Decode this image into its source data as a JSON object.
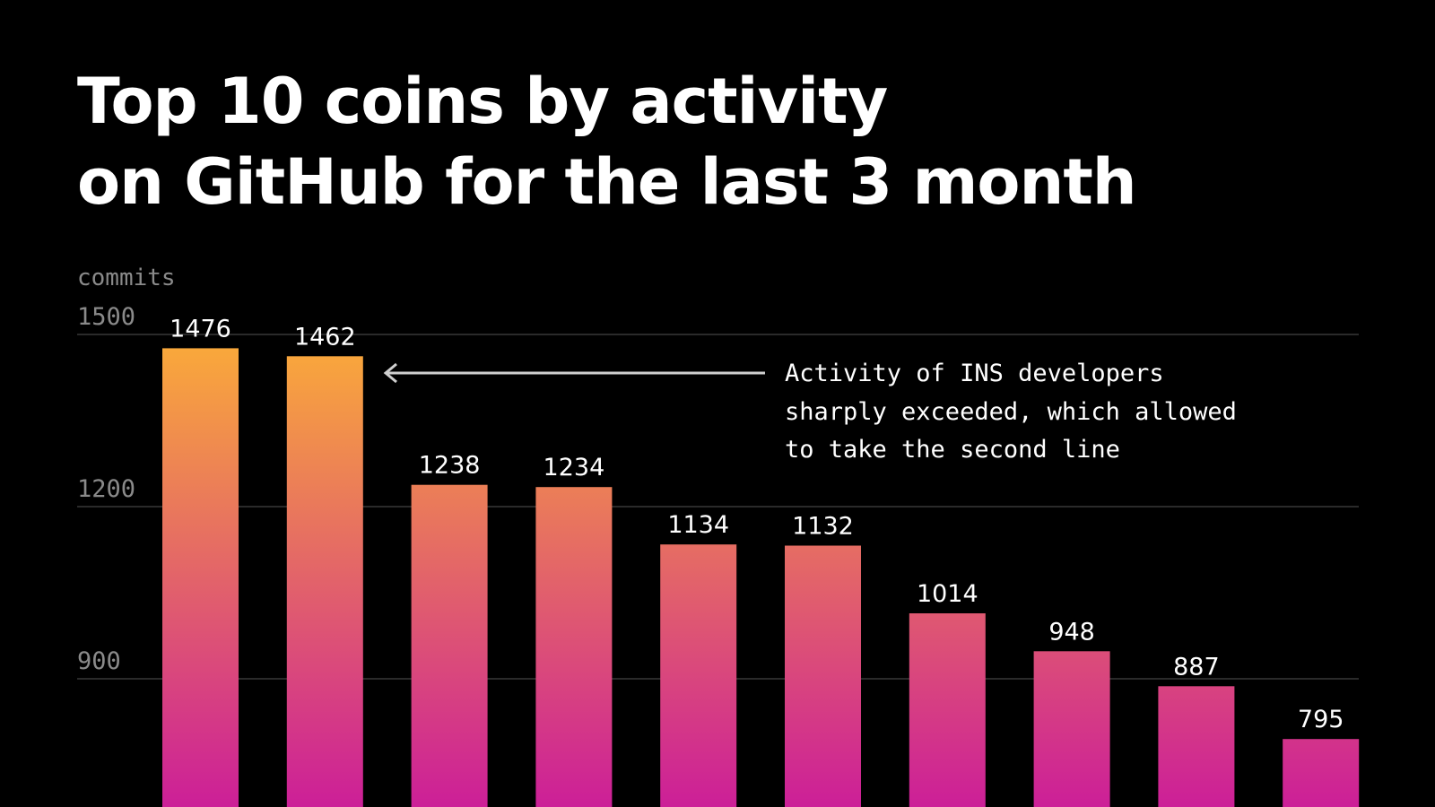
{
  "title_lines": [
    "Top 10 coins by activity",
    "on GitHub for the last 3 month"
  ],
  "chart_data": {
    "type": "bar",
    "ylabel": "commits",
    "yticks": [
      900,
      1200,
      1500
    ],
    "ylim": [
      700,
      1500
    ],
    "grid": true,
    "values": [
      1476,
      1462,
      1238,
      1234,
      1134,
      1132,
      1014,
      948,
      887,
      795
    ],
    "data_labels": [
      "1476",
      "1462",
      "1238",
      "1234",
      "1134",
      "1132",
      "1014",
      "948",
      "887",
      "795"
    ],
    "annotation": {
      "lines": [
        "Activity of INS developers",
        "sharply exceeded, which allowed",
        "to take the second line"
      ],
      "points_to_bar": 2
    },
    "colors": {
      "bar_top": "#f9a83b",
      "bar_bottom": "#cc1f98",
      "gridline": "#2a2a2a",
      "axis_text": "#8a8a8a",
      "label_text": "#ffffff",
      "arrow": "#cfcfcf"
    }
  }
}
